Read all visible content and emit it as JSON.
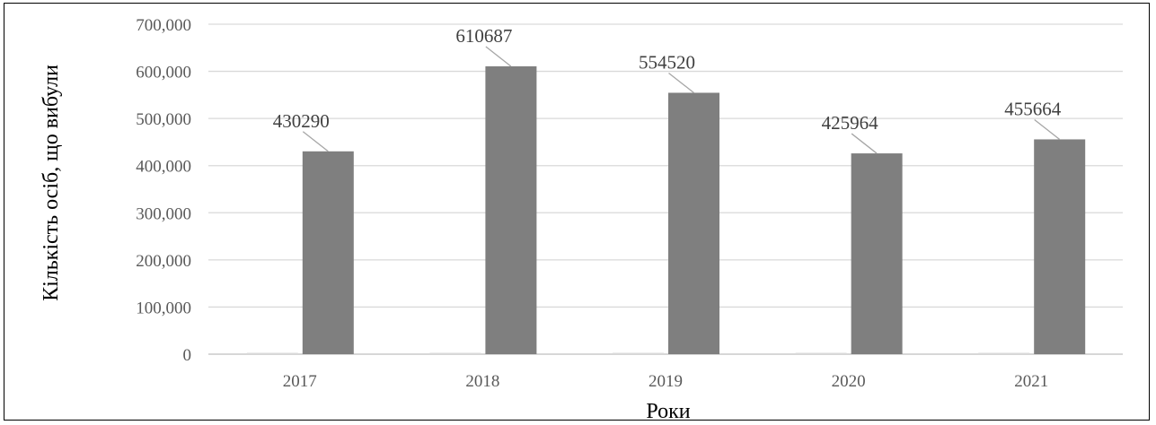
{
  "chart_data": {
    "type": "bar",
    "categories": [
      "2017",
      "2018",
      "2019",
      "2020",
      "2021"
    ],
    "series": [
      {
        "values": [
          0,
          0,
          0,
          0,
          0
        ]
      },
      {
        "values": [
          430290,
          610687,
          554520,
          425964,
          455664
        ]
      }
    ],
    "data_labels": [
      "430290",
      "610687",
      "554520",
      "425964",
      "455664"
    ],
    "xlabel": "Роки",
    "ylabel": "Кількість осіб, що вибули",
    "ylim": [
      0,
      700000
    ],
    "yticks": [
      0,
      100000,
      200000,
      300000,
      400000,
      500000,
      600000,
      700000
    ],
    "ytick_labels": [
      "0",
      "100,000",
      "200,000",
      "300,000",
      "400,000",
      "500,000",
      "600,000",
      "700,000"
    ],
    "grid": true,
    "bar_color": "#7f7f7f",
    "grid_color": "#d9d9d9"
  }
}
